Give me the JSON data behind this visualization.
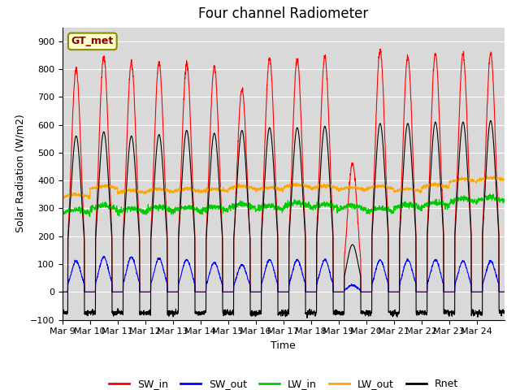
{
  "title": "Four channel Radiometer",
  "xlabel": "Time",
  "ylabel": "Solar Radiation (W/m2)",
  "ylim": [
    -100,
    950
  ],
  "yticks": [
    -100,
    0,
    100,
    200,
    300,
    400,
    500,
    600,
    700,
    800,
    900
  ],
  "x_tick_positions": [
    0,
    1,
    2,
    3,
    4,
    5,
    6,
    7,
    8,
    9,
    10,
    11,
    12,
    13,
    14,
    15
  ],
  "x_labels": [
    "Mar 9",
    "Mar 10",
    "Mar 11",
    "Mar 12",
    "Mar 13",
    "Mar 14",
    "Mar 15",
    "Mar 16",
    "Mar 17",
    "Mar 18",
    "Mar 19",
    "Mar 20",
    "Mar 21",
    "Mar 22",
    "Mar 23",
    "Mar 24"
  ],
  "n_days": 16,
  "station_label": "GT_met",
  "colors": {
    "SW_in": "#ff0000",
    "SW_out": "#0000ff",
    "LW_in": "#00cc00",
    "LW_out": "#ffa500",
    "Rnet": "#000000"
  },
  "background_color": "#d9d9d9",
  "SW_in_peaks": [
    800,
    845,
    825,
    825,
    820,
    810,
    730,
    840,
    835,
    845,
    460,
    870,
    845,
    860,
    855,
    855
  ],
  "SW_out_peaks": [
    110,
    125,
    125,
    120,
    115,
    105,
    98,
    115,
    115,
    115,
    25,
    115,
    115,
    115,
    110,
    110
  ],
  "LW_in_day": [
    280,
    295,
    285,
    290,
    290,
    290,
    300,
    295,
    305,
    300,
    295,
    285,
    300,
    305,
    320,
    325
  ],
  "LW_out_day": [
    340,
    370,
    355,
    360,
    360,
    360,
    370,
    365,
    375,
    370,
    365,
    370,
    360,
    375,
    395,
    400
  ],
  "Rnet_peaks": [
    560,
    575,
    560,
    565,
    580,
    570,
    580,
    590,
    590,
    595,
    170,
    605,
    605,
    610,
    610,
    615
  ],
  "Rnet_night": -75,
  "pts_per_day": 144,
  "legend_entries": [
    "SW_in",
    "SW_out",
    "LW_in",
    "LW_out",
    "Rnet"
  ]
}
